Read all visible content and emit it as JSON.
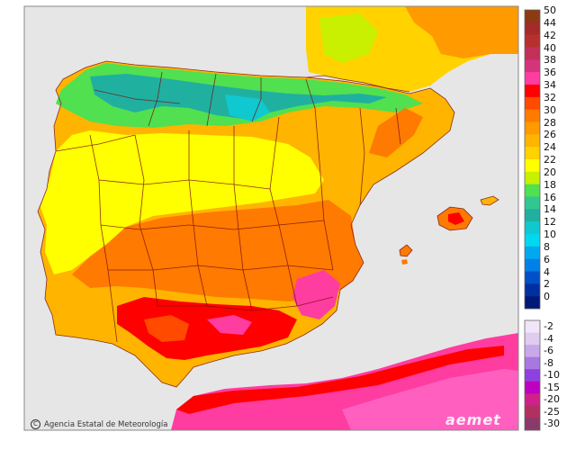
{
  "map": {
    "type": "temperature-map",
    "region": "Iberian Peninsula and Balearic Islands"
  },
  "legend": {
    "positive": [
      {
        "label": "50",
        "color": "#8b3a12"
      },
      {
        "label": "44",
        "color": "#a52a2a"
      },
      {
        "label": "42",
        "color": "#b8302e"
      },
      {
        "label": "40",
        "color": "#c2305a"
      },
      {
        "label": "38",
        "color": "#d4347a"
      },
      {
        "label": "36",
        "color": "#ff3ca0"
      },
      {
        "label": "34",
        "color": "#ff0000"
      },
      {
        "label": "32",
        "color": "#ff4a00"
      },
      {
        "label": "30",
        "color": "#ff7a00"
      },
      {
        "label": "28",
        "color": "#ff9a00"
      },
      {
        "label": "26",
        "color": "#ffb400"
      },
      {
        "label": "24",
        "color": "#ffd200"
      },
      {
        "label": "22",
        "color": "#ffff00"
      },
      {
        "label": "20",
        "color": "#c8f000"
      },
      {
        "label": "18",
        "color": "#50e050"
      },
      {
        "label": "16",
        "color": "#30c890"
      },
      {
        "label": "14",
        "color": "#20b0a0"
      },
      {
        "label": "12",
        "color": "#10c8d0"
      },
      {
        "label": "10",
        "color": "#00d8f0"
      },
      {
        "label": "8",
        "color": "#00a8f0"
      },
      {
        "label": "6",
        "color": "#0080e8"
      },
      {
        "label": "4",
        "color": "#0050c8"
      },
      {
        "label": "2",
        "color": "#0030a0"
      },
      {
        "label": "0",
        "color": "#001878"
      }
    ],
    "negative": [
      {
        "label": "-2",
        "color": "#f0e6f8"
      },
      {
        "label": "-4",
        "color": "#e0ccf0"
      },
      {
        "label": "-6",
        "color": "#c8a8ea"
      },
      {
        "label": "-8",
        "color": "#a878e0"
      },
      {
        "label": "-10",
        "color": "#9040e0"
      },
      {
        "label": "-15",
        "color": "#c000c0"
      },
      {
        "label": "-20",
        "color": "#d0208a"
      },
      {
        "label": "-25",
        "color": "#b03060"
      },
      {
        "label": "-30",
        "color": "#8a3a6a"
      }
    ]
  },
  "credit": "Agencia Estatal de Meteorología",
  "logo": "aemet"
}
